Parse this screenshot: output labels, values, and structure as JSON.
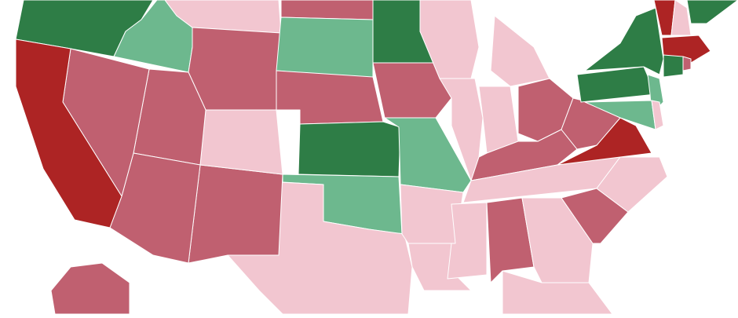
{
  "map": {
    "colors": [
      "#2e7d46",
      "#6db88e",
      "#f2c6d0",
      "#c06070",
      "#ad2424"
    ]
  }
}
